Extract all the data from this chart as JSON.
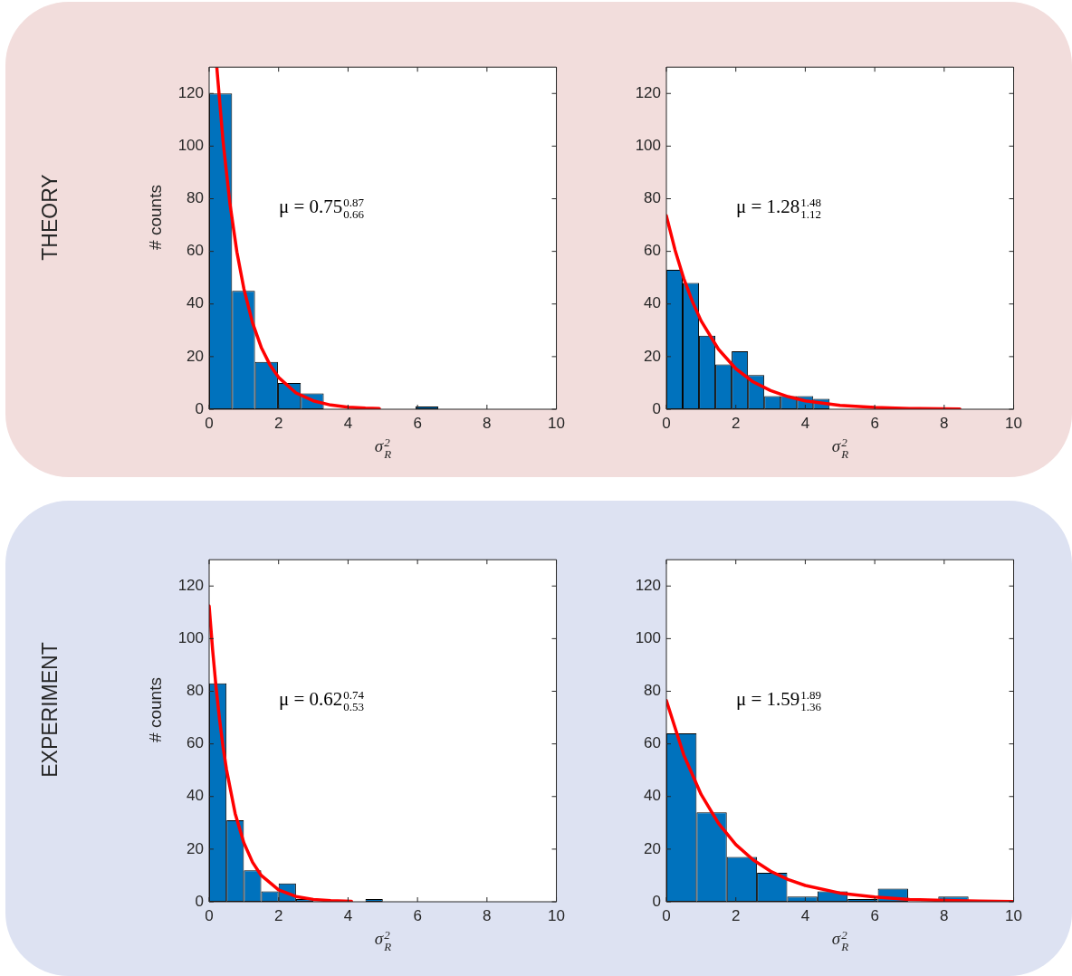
{
  "chart_data": [
    {
      "type": "histogram",
      "xlabel": "σ$^{2}$$_{R}$",
      "ylabel": "# counts",
      "xlim": [
        0,
        10
      ],
      "xticks": [
        0,
        2,
        4,
        6,
        8,
        10
      ],
      "ylim": [
        0,
        130
      ],
      "yticks": [
        0,
        20,
        40,
        60,
        80,
        100,
        120
      ],
      "annotations": [
        "μ = 0.75$^{0.87}$$_{0.66}$",
        "THEORY"
      ],
      "series": [
        {
          "type": "histogram",
          "color": "#0072bd",
          "bins": [
            0,
            0.66,
            1.32,
            1.98,
            2.64,
            3.3,
            3.96,
            4.62,
            5.28,
            5.94,
            6.6
          ],
          "values": [
            120,
            45,
            18,
            10,
            6,
            0,
            0,
            0,
            0,
            1
          ]
        },
        {
          "type": "line",
          "color": "#ff0000",
          "x": [
            0.22,
            0.4,
            0.6,
            0.8,
            1.0,
            1.25,
            1.5,
            1.75,
            2.0,
            2.5,
            3.0,
            3.5,
            4.0,
            4.5,
            4.9
          ],
          "values": [
            130,
            101.9,
            78.0,
            59.7,
            45.8,
            32.8,
            23.5,
            16.9,
            12.1,
            6.2,
            3.2,
            1.6,
            0.8,
            0.4,
            0.3
          ]
        }
      ]
    },
    {
      "type": "histogram",
      "xlabel": "σ$^{2}$$_{R}$",
      "xlim": [
        0,
        10
      ],
      "xticks": [
        0,
        2,
        4,
        6,
        8,
        10
      ],
      "ylim": [
        0,
        130
      ],
      "yticks": [
        0,
        20,
        40,
        60,
        80,
        100,
        120
      ],
      "annotations": [
        "μ = 1.28$^{1.48}$$_{1.12}$"
      ],
      "series": [
        {
          "type": "histogram",
          "color": "#0072bd",
          "bins": [
            0,
            0.47,
            0.94,
            1.41,
            1.88,
            2.35,
            2.82,
            3.29,
            3.76,
            4.23,
            4.7
          ],
          "values": [
            53,
            48,
            28,
            17,
            22,
            13,
            5,
            5,
            5,
            4
          ]
        },
        {
          "type": "line",
          "color": "#ff0000",
          "x": [
            0,
            0.25,
            0.5,
            0.75,
            1,
            1.5,
            2,
            2.5,
            3,
            3.5,
            4,
            5,
            6,
            7,
            8.45
          ],
          "values": [
            73.5,
            60.5,
            49.7,
            40.9,
            33.6,
            22.8,
            15.4,
            10.4,
            7.1,
            4.8,
            3.2,
            1.5,
            0.7,
            0.3,
            0.1
          ]
        }
      ]
    },
    {
      "type": "histogram",
      "xlabel": "σ$^{2}$$_{R}$",
      "ylabel": "# counts",
      "xlim": [
        0,
        10
      ],
      "xticks": [
        0,
        2,
        4,
        6,
        8,
        10
      ],
      "ylim": [
        0,
        130
      ],
      "yticks": [
        0,
        20,
        40,
        60,
        80,
        100,
        120
      ],
      "annotations": [
        "μ = 0.62$^{0.74}$$_{0.53}$",
        "EXPERIMENT"
      ],
      "series": [
        {
          "type": "histogram",
          "color": "#0072bd",
          "bins": [
            0,
            0.5,
            1,
            1.5,
            2,
            2.5,
            3,
            3.5,
            4,
            4.5,
            5
          ],
          "values": [
            83,
            31,
            12,
            4,
            7,
            1,
            0,
            0,
            0,
            1
          ]
        },
        {
          "type": "line",
          "color": "#ff0000",
          "x": [
            0,
            0.1,
            0.2,
            0.3,
            0.4,
            0.5,
            0.75,
            1,
            1.25,
            1.5,
            2,
            2.5,
            3,
            3.5,
            4.1
          ],
          "values": [
            112.4,
            95.7,
            81.4,
            69.3,
            58.9,
            50.2,
            33.5,
            22.4,
            15.0,
            10.0,
            4.5,
            2.0,
            0.9,
            0.4,
            0.2
          ]
        }
      ]
    },
    {
      "type": "histogram",
      "xlabel": "σ$^{2}$$_{R}$",
      "xlim": [
        0,
        10
      ],
      "xticks": [
        0,
        2,
        4,
        6,
        8,
        10
      ],
      "ylim": [
        0,
        130
      ],
      "yticks": [
        0,
        20,
        40,
        60,
        80,
        100,
        120
      ],
      "annotations": [
        "μ = 1.59$^{1.89}$$_{1.36}$"
      ],
      "series": [
        {
          "type": "histogram",
          "color": "#0072bd",
          "bins": [
            0,
            0.87,
            1.74,
            2.61,
            3.48,
            4.35,
            5.22,
            6.09,
            6.96,
            7.83,
            8.7
          ],
          "values": [
            64,
            34,
            17,
            11,
            2,
            4,
            1,
            5,
            0,
            2
          ]
        },
        {
          "type": "line",
          "color": "#ff0000",
          "x": [
            0,
            0.5,
            1,
            1.5,
            2,
            2.5,
            3,
            3.5,
            4,
            5,
            6,
            7,
            8,
            9,
            10
          ],
          "values": [
            76.5,
            55.8,
            40.8,
            29.8,
            21.7,
            15.9,
            11.6,
            8.5,
            6.2,
            3.3,
            1.8,
            0.9,
            0.5,
            0.3,
            0.1
          ]
        }
      ]
    }
  ]
}
